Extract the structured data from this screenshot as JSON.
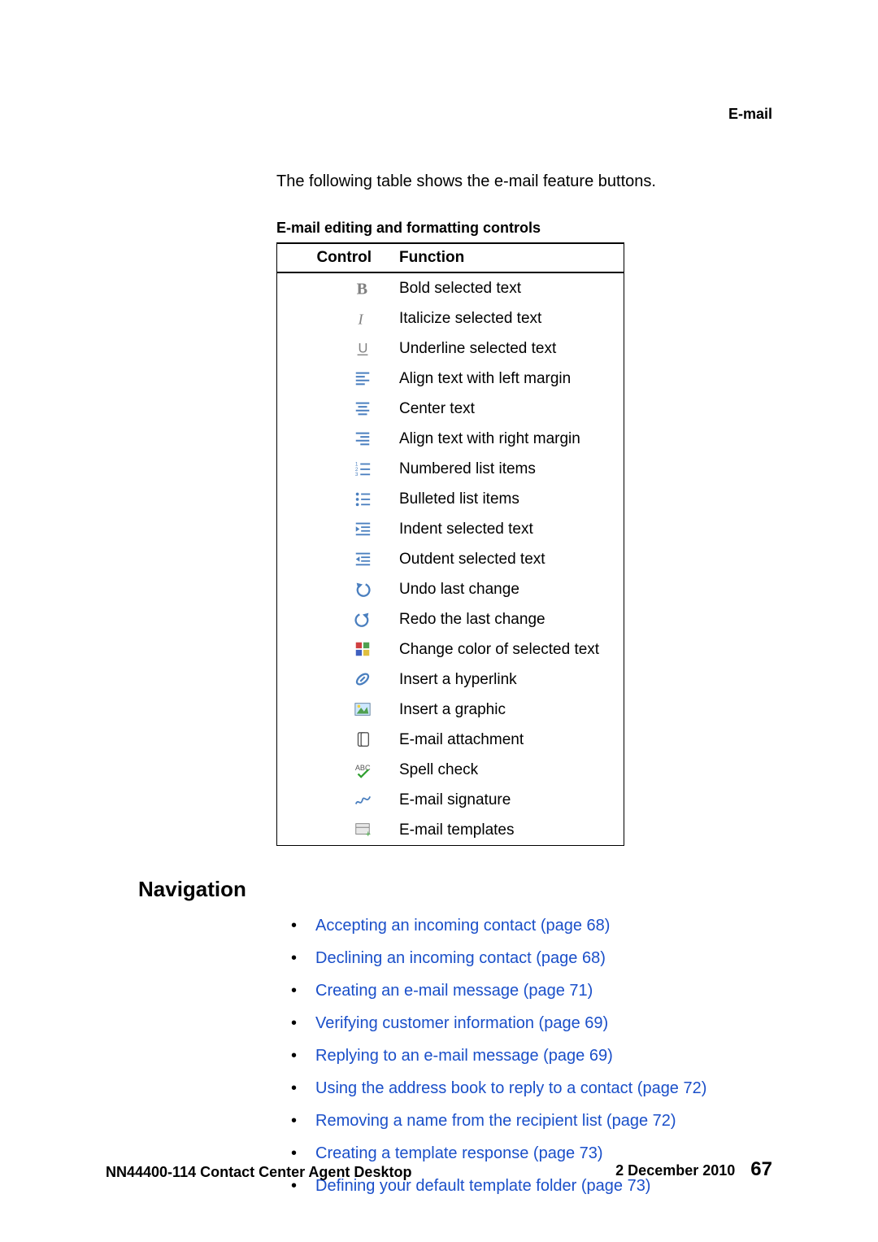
{
  "header": {
    "section": "E-mail"
  },
  "intro": "The following table shows the e-mail feature buttons.",
  "table": {
    "title": "E-mail editing and formatting controls",
    "columns": [
      "Control",
      "Function"
    ],
    "rows": [
      {
        "icon": "bold",
        "func": "Bold selected text"
      },
      {
        "icon": "italic",
        "func": "Italicize selected text"
      },
      {
        "icon": "underline",
        "func": "Underline selected text"
      },
      {
        "icon": "align-left",
        "func": "Align text with left margin"
      },
      {
        "icon": "align-center",
        "func": "Center text"
      },
      {
        "icon": "align-right",
        "func": "Align text with right margin"
      },
      {
        "icon": "numbered-list",
        "func": "Numbered list items"
      },
      {
        "icon": "bulleted-list",
        "func": "Bulleted list items"
      },
      {
        "icon": "indent",
        "func": "Indent selected text"
      },
      {
        "icon": "outdent",
        "func": "Outdent selected text"
      },
      {
        "icon": "undo",
        "func": "Undo last change"
      },
      {
        "icon": "redo",
        "func": "Redo the last change"
      },
      {
        "icon": "color",
        "func": "Change color of selected text"
      },
      {
        "icon": "hyperlink",
        "func": "Insert a hyperlink"
      },
      {
        "icon": "graphic",
        "func": "Insert a graphic"
      },
      {
        "icon": "attachment",
        "func": "E-mail attachment"
      },
      {
        "icon": "spellcheck",
        "func": "Spell check"
      },
      {
        "icon": "signature",
        "func": "E-mail signature"
      },
      {
        "icon": "templates",
        "func": "E-mail templates"
      }
    ]
  },
  "navigation": {
    "heading": "Navigation",
    "links": [
      "Accepting an incoming contact (page 68)",
      "Declining an incoming contact (page 68)",
      "Creating an e-mail message (page 71)",
      "Verifying customer information (page 69)",
      "Replying to an e-mail message (page 69)",
      "Using the address book to reply to a contact (page 72)",
      "Removing a name from the recipient list (page 72)",
      "Creating a template response (page 73)",
      "Defining your default template folder (page 73)"
    ]
  },
  "footer": {
    "doc": "NN44400-114 Contact Center Agent Desktop",
    "date": "2 December 2010",
    "page": "67"
  },
  "colors": {
    "link": "#1a4fc9",
    "icon_gray": "#808080",
    "icon_dark": "#555555",
    "icon_blue": "#4a7fbf",
    "text": "#000000",
    "bg": "#ffffff"
  }
}
